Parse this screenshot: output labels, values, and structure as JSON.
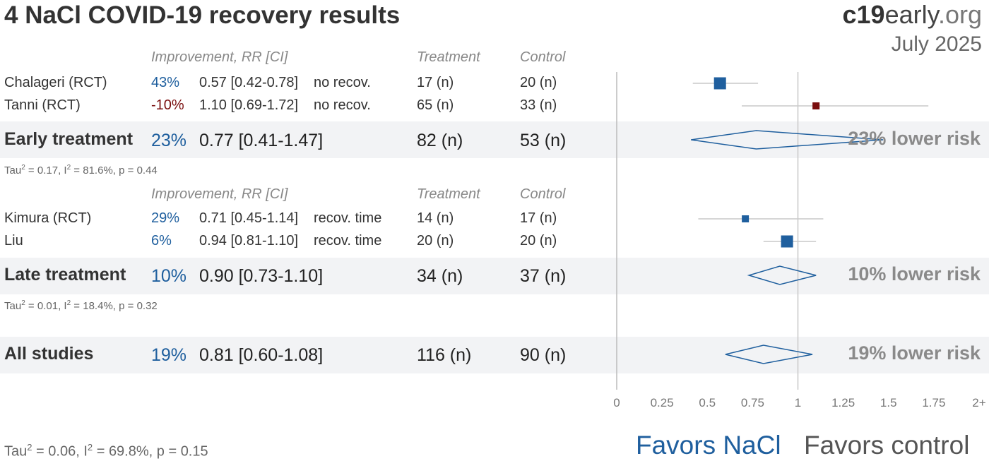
{
  "title": "4 NaCl COVID-19 recovery results",
  "brand": {
    "part1": "c19",
    "part2": "early",
    "part3": ".org"
  },
  "date": "July 2025",
  "headers": {
    "improvement": "Improvement, RR [CI]",
    "treatment": "Treatment",
    "control": "Control"
  },
  "groups": [
    {
      "studies": [
        {
          "name": "Chalageri (RCT)",
          "improvement": "43%",
          "rr_text": "0.57 [0.42-0.78]",
          "outcome": "no recov.",
          "treatment": "17 (n)",
          "control": "20 (n)",
          "color": "#1f5f9e"
        },
        {
          "name": "Tanni (RCT)",
          "improvement": "-10%",
          "rr_text": "1.10 [0.69-1.72]",
          "outcome": "no recov.",
          "treatment": "65 (n)",
          "control": "33 (n)",
          "color": "#7a0e0e"
        }
      ],
      "summary": {
        "label": "Early treatment",
        "improvement": "23%",
        "rr_text": "0.77 [0.41-1.47]",
        "treatment": "82 (n)",
        "control": "53 (n)",
        "risk": "23% lower risk"
      },
      "stats": {
        "tau": "0.17",
        "i2": "81.6%",
        "p": "0.44"
      }
    },
    {
      "studies": [
        {
          "name": "Kimura (RCT)",
          "improvement": "29%",
          "rr_text": "0.71 [0.45-1.14]",
          "outcome": "recov. time",
          "treatment": "14 (n)",
          "control": "17 (n)",
          "color": "#1f5f9e"
        },
        {
          "name": "Liu",
          "improvement": "6%",
          "rr_text": "0.94 [0.81-1.10]",
          "outcome": "recov. time",
          "treatment": "20 (n)",
          "control": "20 (n)",
          "color": "#1f5f9e"
        }
      ],
      "summary": {
        "label": "Late treatment",
        "improvement": "10%",
        "rr_text": "0.90 [0.73-1.10]",
        "treatment": "34 (n)",
        "control": "37 (n)",
        "risk": "10% lower risk"
      },
      "stats": {
        "tau": "0.01",
        "i2": "18.4%",
        "p": "0.32"
      }
    }
  ],
  "overall": {
    "label": "All studies",
    "improvement": "19%",
    "rr_text": "0.81 [0.60-1.08]",
    "treatment": "116 (n)",
    "control": "90 (n)",
    "risk": "19% lower risk"
  },
  "overall_stats": {
    "tau": "0.06",
    "i2": "69.8%",
    "p": "0.15"
  },
  "stat_labels": {
    "tau": "Tau",
    "i2": "I",
    "sq": "2"
  },
  "favors": {
    "left": "Favors NaCl",
    "right": "Favors control"
  },
  "colors": {
    "favorable": "#1f5f9e",
    "unfavorable": "#7a0e0e",
    "diamond": "#1f5f9e"
  },
  "chart_data": {
    "type": "forest",
    "title": "4 NaCl COVID-19 recovery results",
    "xlim": [
      0,
      2
    ],
    "null_value": 1,
    "x_ticks": [
      "0",
      "0.25",
      "0.5",
      "0.75",
      "1",
      "1.25",
      "1.5",
      "1.75",
      "2+"
    ],
    "studies": [
      {
        "name": "Chalageri (RCT)",
        "rr": 0.57,
        "ci": [
          0.42,
          0.78
        ],
        "weight": "medium",
        "group": "Early treatment"
      },
      {
        "name": "Tanni (RCT)",
        "rr": 1.1,
        "ci": [
          0.69,
          1.72
        ],
        "weight": "small",
        "group": "Early treatment"
      },
      {
        "name": "Kimura (RCT)",
        "rr": 0.71,
        "ci": [
          0.45,
          1.14
        ],
        "weight": "small",
        "group": "Late treatment"
      },
      {
        "name": "Liu",
        "rr": 0.94,
        "ci": [
          0.81,
          1.1
        ],
        "weight": "medium",
        "group": "Late treatment"
      }
    ],
    "summaries": [
      {
        "name": "Early treatment",
        "rr": 0.77,
        "ci": [
          0.41,
          1.47
        ]
      },
      {
        "name": "Late treatment",
        "rr": 0.9,
        "ci": [
          0.73,
          1.1
        ]
      },
      {
        "name": "All studies",
        "rr": 0.81,
        "ci": [
          0.6,
          1.08
        ]
      }
    ]
  }
}
